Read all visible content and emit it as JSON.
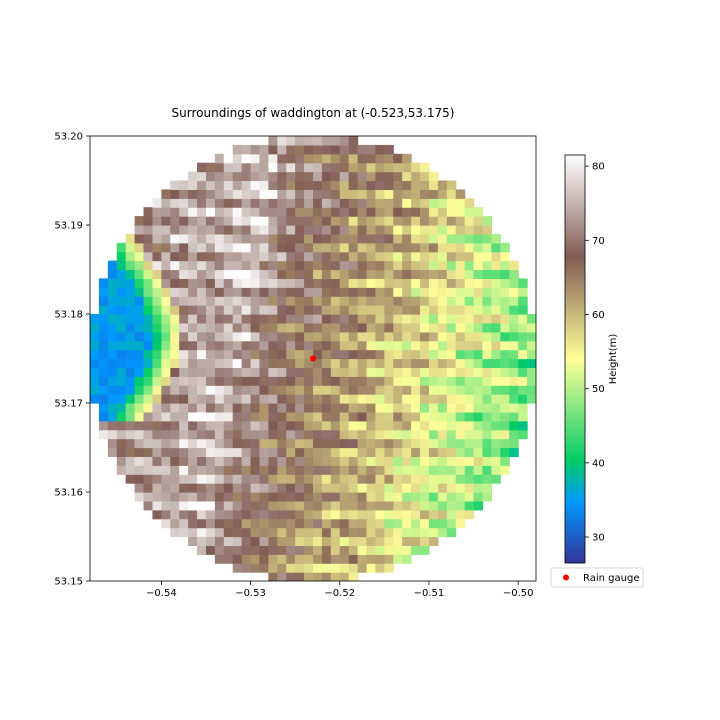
{
  "chart_data": {
    "type": "heatmap",
    "title": "Surroundings of waddington at (-0.523,53.175)",
    "xlabel": "",
    "ylabel": "",
    "xlim": [
      -0.548,
      -0.498
    ],
    "ylim": [
      53.15,
      53.2
    ],
    "x_ticks": [
      -0.54,
      -0.53,
      -0.52,
      -0.51,
      -0.5
    ],
    "x_tick_labels": [
      "−0.54",
      "−0.53",
      "−0.52",
      "−0.51",
      "−0.50"
    ],
    "y_ticks": [
      53.15,
      53.16,
      53.17,
      53.18,
      53.19,
      53.2
    ],
    "y_tick_labels": [
      "53.15",
      "53.16",
      "53.17",
      "53.18",
      "53.19",
      "53.20"
    ],
    "grid": false,
    "domain_circle": {
      "center": [
        -0.523,
        53.175
      ],
      "radius_deg": 0.025
    },
    "height_field": {
      "ridge_lon_south": -0.536,
      "ridge_lon_north": -0.526,
      "cliff_lon_south": -0.5465,
      "cliff_lon_north": -0.539,
      "cliff_lat_range": [
        53.168,
        53.191
      ],
      "east_slope_m_per_deg": 780,
      "crest_height_m": 78,
      "low_height_m": 27
    },
    "colorbar": {
      "label": "Height(m)",
      "vmin": 26.5,
      "vmax": 81.5,
      "ticks": [
        30,
        40,
        50,
        60,
        70,
        80
      ],
      "colormap": "terrain"
    },
    "markers": [
      {
        "name": "Rain gauge",
        "x": -0.523,
        "y": 53.175,
        "color": "#ff0000"
      }
    ],
    "legend": {
      "label": "Rain gauge",
      "position": "below colorbar"
    }
  }
}
